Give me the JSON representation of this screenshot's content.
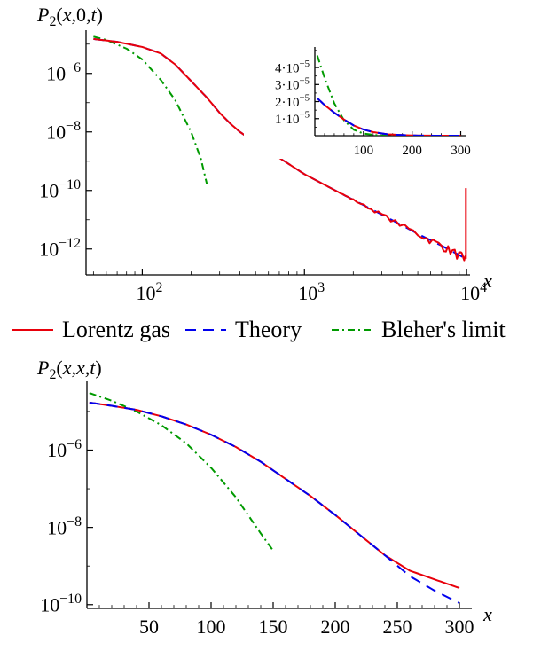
{
  "chart_data": [
    {
      "type": "line",
      "title": "",
      "ylabel": "P2(x,0,t)",
      "xlabel": "x",
      "xscale": "log",
      "yscale": "log",
      "xlim": [
        45,
        10500
      ],
      "ylim": [
        1.3e-13,
        3e-05
      ],
      "x_ticks": [
        100,
        1000,
        10000
      ],
      "x_tick_labels": [
        {
          "base": "10",
          "exp": "2"
        },
        {
          "base": "10",
          "exp": "3"
        },
        {
          "base": "10",
          "exp": "4"
        }
      ],
      "y_ticks": [
        1e-06,
        1e-08,
        1e-10,
        1e-12
      ],
      "y_tick_labels": [
        {
          "base": "10",
          "exp": "−6"
        },
        {
          "base": "10",
          "exp": "−8"
        },
        {
          "base": "10",
          "exp": "−10"
        },
        {
          "base": "10",
          "exp": "−12"
        }
      ],
      "series": [
        {
          "name": "Lorentz gas",
          "color": "#e8000b",
          "dash": "solid",
          "noisy": true,
          "x": [
            50,
            70,
            100,
            130,
            160,
            200,
            250,
            300,
            350,
            400,
            500,
            700,
            1000,
            1500,
            2000,
            3000,
            5000,
            7000,
            9000,
            9900
          ],
          "y": [
            1.5e-05,
            1.2e-05,
            8e-06,
            4.8e-06,
            2e-06,
            5.5e-07,
            1.5e-07,
            4.5e-08,
            1.9e-08,
            1e-08,
            4.3e-09,
            1.3e-09,
            3.6e-10,
            1.1e-10,
            4.8e-11,
            1.5e-11,
            3.3e-12,
            1.3e-12,
            6.2e-13,
            4.6e-13
          ]
        },
        {
          "name": "Theory",
          "color": "#0000ee",
          "dash": "long-dash",
          "noisy": false,
          "x": [
            50,
            70,
            100,
            130,
            160,
            200,
            250,
            300,
            350,
            400,
            500,
            700,
            1000,
            1500,
            2000,
            3000,
            5000,
            7000,
            9000,
            9900
          ],
          "y": [
            1.5e-05,
            1.2e-05,
            8e-06,
            4.8e-06,
            2e-06,
            5.5e-07,
            1.5e-07,
            4.5e-08,
            1.9e-08,
            1e-08,
            4.3e-09,
            1.3e-09,
            3.6e-10,
            1.1e-10,
            4.8e-11,
            1.5e-11,
            3.3e-12,
            1.3e-12,
            6.2e-13,
            4.6e-13
          ]
        },
        {
          "name": "Bleher's limit",
          "color": "#009a00",
          "dash": "dash-dot",
          "noisy": false,
          "x": [
            50,
            60,
            80,
            100,
            130,
            160,
            200,
            230,
            250
          ],
          "y": [
            1.8e-05,
            1.4e-05,
            7e-06,
            3e-06,
            6e-07,
            1.2e-07,
            1e-08,
            1.2e-09,
            1.7e-10
          ]
        }
      ],
      "final_spike": {
        "x": 10000,
        "y": 1.2e-10
      }
    },
    {
      "type": "line",
      "title": "",
      "xlabel": "",
      "ylabel": "",
      "xscale": "linear",
      "yscale": "linear",
      "xlim": [
        0,
        310
      ],
      "ylim": [
        0,
        5.2e-05
      ],
      "x_ticks": [
        100,
        200,
        300
      ],
      "x_tick_labels": [
        "100",
        "200",
        "300"
      ],
      "y_ticks": [
        1e-05,
        2e-05,
        3e-05,
        4e-05
      ],
      "y_tick_labels": [
        "1·10",
        "2·10",
        "3·10",
        "4·10"
      ],
      "y_tick_exponent": "−5",
      "series": [
        {
          "name": "Lorentz gas",
          "color": "#e8000b",
          "dash": "solid",
          "x": [
            5,
            20,
            40,
            60,
            80,
            100,
            120,
            150,
            200,
            250,
            300
          ],
          "y": [
            2.2e-05,
            1.8e-05,
            1.35e-05,
            9.5e-06,
            6e-06,
            3.6e-06,
            2.1e-06,
            8e-07,
            1.2e-07,
            1e-08,
            1e-09
          ]
        },
        {
          "name": "Theory",
          "color": "#0000ee",
          "dash": "long-dash",
          "x": [
            5,
            20,
            40,
            60,
            80,
            100,
            120,
            150,
            200,
            250,
            300
          ],
          "y": [
            2.2e-05,
            1.8e-05,
            1.35e-05,
            9.5e-06,
            6e-06,
            3.6e-06,
            2.1e-06,
            8e-07,
            1.2e-07,
            1e-08,
            1e-09
          ]
        },
        {
          "name": "Bleher's limit",
          "color": "#009a00",
          "dash": "dash-dot",
          "x": [
            5,
            20,
            40,
            60,
            80,
            100,
            130,
            160
          ],
          "y": [
            4.7e-05,
            3.4e-05,
            1.9e-05,
            9e-06,
            3.5e-06,
            1.2e-06,
            2e-07,
            2e-08
          ]
        }
      ]
    },
    {
      "type": "line",
      "title": "",
      "ylabel": "P2(x,x,t)",
      "xlabel": "x",
      "xscale": "linear",
      "yscale": "log",
      "xlim": [
        0,
        310
      ],
      "ylim": [
        8e-11,
        6e-05
      ],
      "x_ticks": [
        50,
        100,
        150,
        200,
        250,
        300
      ],
      "x_tick_labels": [
        "50",
        "100",
        "150",
        "200",
        "250",
        "300"
      ],
      "y_ticks": [
        1e-06,
        1e-08,
        1e-10
      ],
      "y_tick_labels": [
        {
          "base": "10",
          "exp": "−6"
        },
        {
          "base": "10",
          "exp": "−8"
        },
        {
          "base": "10",
          "exp": "−10"
        }
      ],
      "series": [
        {
          "name": "Lorentz gas",
          "color": "#e8000b",
          "dash": "solid",
          "x": [
            2,
            20,
            40,
            60,
            80,
            100,
            120,
            140,
            160,
            180,
            200,
            220,
            240,
            260,
            280,
            300
          ],
          "y": [
            1.7e-05,
            1.4e-05,
            1.1e-05,
            7.5e-06,
            4.6e-06,
            2.5e-06,
            1.2e-06,
            5e-07,
            1.8e-07,
            6.5e-08,
            2.1e-08,
            6.3e-09,
            1.9e-09,
            7.6e-10,
            4.5e-10,
            2.7e-10
          ]
        },
        {
          "name": "Theory",
          "color": "#0000ee",
          "dash": "long-dash",
          "x": [
            2,
            20,
            40,
            60,
            80,
            100,
            120,
            140,
            160,
            180,
            200,
            220,
            240,
            260,
            280,
            300
          ],
          "y": [
            1.7e-05,
            1.4e-05,
            1.1e-05,
            7.5e-06,
            4.6e-06,
            2.5e-06,
            1.2e-06,
            5e-07,
            1.8e-07,
            6.5e-08,
            2.1e-08,
            6.3e-09,
            1.9e-09,
            5.5e-10,
            2.3e-10,
            1.1e-10
          ]
        },
        {
          "name": "Bleher's limit",
          "color": "#009a00",
          "dash": "dash-dot",
          "x": [
            2,
            20,
            40,
            60,
            80,
            100,
            120,
            140,
            150
          ],
          "y": [
            3e-05,
            1.9e-05,
            1e-05,
            4.4e-06,
            1.5e-06,
            3.5e-07,
            6e-08,
            7e-09,
            2.5e-09
          ]
        }
      ]
    }
  ],
  "legend": {
    "items": [
      {
        "label": "Lorentz gas",
        "color": "#e8000b",
        "dash": "solid"
      },
      {
        "label": "Theory",
        "color": "#0000ee",
        "dash": "long-dash"
      },
      {
        "label": "Bleher's limit",
        "color": "#009a00",
        "dash": "dash-dot"
      }
    ]
  }
}
